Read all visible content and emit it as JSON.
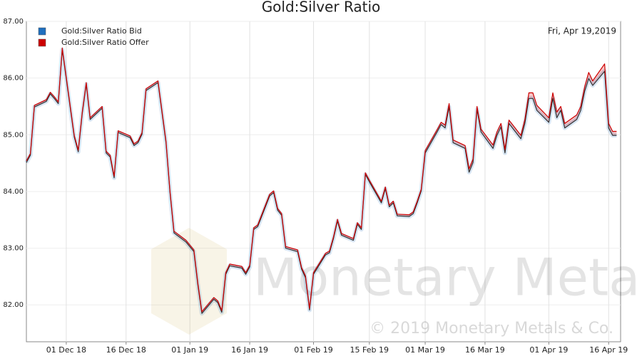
{
  "chart_data": {
    "type": "line",
    "title": "Gold:Silver Ratio",
    "annotation": "Fri, Apr 19,2019",
    "watermark": "Monetary Metals",
    "copyright": "© 2019 Monetary Metals & Co.",
    "x": [
      "2018-11-21",
      "2018-11-22",
      "2018-11-23",
      "2018-11-26",
      "2018-11-27",
      "2018-11-28",
      "2018-11-29",
      "2018-11-30",
      "2018-12-03",
      "2018-12-04",
      "2018-12-05",
      "2018-12-06",
      "2018-12-07",
      "2018-12-10",
      "2018-12-11",
      "2018-12-12",
      "2018-12-13",
      "2018-12-14",
      "2018-12-17",
      "2018-12-18",
      "2018-12-19",
      "2018-12-20",
      "2018-12-21",
      "2018-12-24",
      "2018-12-26",
      "2018-12-27",
      "2018-12-28",
      "2018-12-31",
      "2019-01-02",
      "2019-01-03",
      "2019-01-04",
      "2019-01-07",
      "2019-01-08",
      "2019-01-09",
      "2019-01-10",
      "2019-01-11",
      "2019-01-14",
      "2019-01-15",
      "2019-01-16",
      "2019-01-17",
      "2019-01-18",
      "2019-01-21",
      "2019-01-22",
      "2019-01-23",
      "2019-01-24",
      "2019-01-25",
      "2019-01-28",
      "2019-01-29",
      "2019-01-30",
      "2019-01-31",
      "2019-02-01",
      "2019-02-04",
      "2019-02-05",
      "2019-02-06",
      "2019-02-07",
      "2019-02-08",
      "2019-02-11",
      "2019-02-12",
      "2019-02-13",
      "2019-02-14",
      "2019-02-15",
      "2019-02-18",
      "2019-02-19",
      "2019-02-20",
      "2019-02-21",
      "2019-02-22",
      "2019-02-25",
      "2019-02-26",
      "2019-02-27",
      "2019-02-28",
      "2019-03-01",
      "2019-03-04",
      "2019-03-05",
      "2019-03-06",
      "2019-03-07",
      "2019-03-08",
      "2019-03-11",
      "2019-03-12",
      "2019-03-13",
      "2019-03-14",
      "2019-03-15",
      "2019-03-18",
      "2019-03-19",
      "2019-03-20",
      "2019-03-21",
      "2019-03-22",
      "2019-03-25",
      "2019-03-26",
      "2019-03-27",
      "2019-03-28",
      "2019-03-29",
      "2019-04-01",
      "2019-04-02",
      "2019-04-03",
      "2019-04-04",
      "2019-04-05",
      "2019-04-08",
      "2019-04-09",
      "2019-04-10",
      "2019-04-11",
      "2019-04-12",
      "2019-04-15",
      "2019-04-16",
      "2019-04-17",
      "2019-04-18"
    ],
    "series": [
      {
        "name": "Gold:Silver Ratio Bid",
        "color": "#1f6fbf",
        "values": [
          84.51,
          84.64,
          85.49,
          85.59,
          85.72,
          85.64,
          85.55,
          86.5,
          84.96,
          84.7,
          85.37,
          85.89,
          85.27,
          85.47,
          84.68,
          84.61,
          84.24,
          85.04,
          84.95,
          84.81,
          84.86,
          85.01,
          85.78,
          85.92,
          84.86,
          83.98,
          83.27,
          83.11,
          82.94,
          82.35,
          81.85,
          82.1,
          82.04,
          81.87,
          82.54,
          82.69,
          82.65,
          82.54,
          82.67,
          83.33,
          83.38,
          83.92,
          83.98,
          83.67,
          83.58,
          83.0,
          82.94,
          82.63,
          82.48,
          81.91,
          82.54,
          82.88,
          82.92,
          83.17,
          83.48,
          83.23,
          83.14,
          83.42,
          83.33,
          84.3,
          84.17,
          83.8,
          84.05,
          83.73,
          83.8,
          83.57,
          83.56,
          83.61,
          83.8,
          84.01,
          84.68,
          85.05,
          85.18,
          85.12,
          85.49,
          84.86,
          84.76,
          84.34,
          84.51,
          85.45,
          85.05,
          84.76,
          84.99,
          85.14,
          84.68,
          85.2,
          84.93,
          85.2,
          85.64,
          85.64,
          85.43,
          85.22,
          85.64,
          85.3,
          85.43,
          85.12,
          85.27,
          85.43,
          85.77,
          85.99,
          85.87,
          86.12,
          85.12,
          84.99,
          84.99
        ]
      },
      {
        "name": "Gold:Silver Ratio Offer",
        "color": "#cc0000",
        "values": [
          84.54,
          84.67,
          85.52,
          85.62,
          85.75,
          85.67,
          85.58,
          86.53,
          84.99,
          84.73,
          85.4,
          85.92,
          85.3,
          85.5,
          84.71,
          84.64,
          84.27,
          85.07,
          84.98,
          84.84,
          84.89,
          85.04,
          85.81,
          85.95,
          84.89,
          84.01,
          83.3,
          83.14,
          82.97,
          82.38,
          81.88,
          82.13,
          82.07,
          81.9,
          82.57,
          82.72,
          82.68,
          82.57,
          82.7,
          83.36,
          83.41,
          83.95,
          84.01,
          83.7,
          83.61,
          83.03,
          82.97,
          82.66,
          82.51,
          81.94,
          82.57,
          82.91,
          82.95,
          83.2,
          83.51,
          83.26,
          83.17,
          83.45,
          83.36,
          84.33,
          84.2,
          83.83,
          84.08,
          83.76,
          83.83,
          83.6,
          83.59,
          83.64,
          83.83,
          84.04,
          84.72,
          85.09,
          85.22,
          85.17,
          85.55,
          84.91,
          84.81,
          84.4,
          84.57,
          85.5,
          85.1,
          84.82,
          85.05,
          85.2,
          84.74,
          85.26,
          84.99,
          85.27,
          85.74,
          85.74,
          85.52,
          85.3,
          85.74,
          85.4,
          85.5,
          85.2,
          85.35,
          85.5,
          85.85,
          86.1,
          85.95,
          86.25,
          85.2,
          85.06,
          85.06
        ]
      }
    ],
    "xlim": [
      "2018-11-21",
      "2019-04-19"
    ],
    "xticks": [
      {
        "value": "2018-12-01",
        "label": "01 Dec 18"
      },
      {
        "value": "2018-12-16",
        "label": "16 Dec 18"
      },
      {
        "value": "2019-01-01",
        "label": "01 Jan 19"
      },
      {
        "value": "2019-01-16",
        "label": "16 Jan 19"
      },
      {
        "value": "2019-02-01",
        "label": "01 Feb 19"
      },
      {
        "value": "2019-02-15",
        "label": "15 Feb 19"
      },
      {
        "value": "2019-03-01",
        "label": "01 Mar 19"
      },
      {
        "value": "2019-03-16",
        "label": "16 Mar 19"
      },
      {
        "value": "2019-04-01",
        "label": "01 Apr 19"
      },
      {
        "value": "2019-04-16",
        "label": "16 Apr 19"
      }
    ],
    "ylim": [
      81.35,
      87
    ],
    "yticks": [
      {
        "value": 82,
        "label": "82.00"
      },
      {
        "value": 83,
        "label": "83.00"
      },
      {
        "value": 84,
        "label": "84.00"
      },
      {
        "value": 85,
        "label": "85.00"
      },
      {
        "value": 86,
        "label": "86.00"
      },
      {
        "value": 87,
        "label": "87.00"
      }
    ],
    "grid": true,
    "legend": "top-left"
  }
}
